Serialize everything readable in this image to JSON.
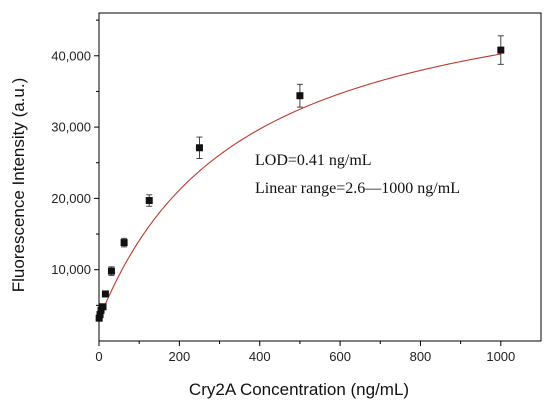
{
  "chart_data": {
    "type": "scatter",
    "xlabel": "Cry2A Concentration (ng/mL)",
    "ylabel": "Fluorescence Intensity (a.u.)",
    "xlim": [
      0,
      1100
    ],
    "ylim": [
      0,
      46000
    ],
    "x_ticks": [
      0,
      200,
      400,
      600,
      800,
      1000
    ],
    "x_tick_labels": [
      "0",
      "200",
      "400",
      "600",
      "800",
      "1000"
    ],
    "y_ticks": [
      10000,
      20000,
      30000,
      40000
    ],
    "y_tick_labels": [
      "10,000",
      "20,000",
      "30,000",
      "40,000"
    ],
    "grid": false,
    "legend": "none",
    "marker_color": "#111111",
    "fit_color": "#c0392b",
    "annotations": [
      "LOD=0.41 ng/mL",
      "Linear range=2.6—1000 ng/mL"
    ],
    "series": [
      {
        "x": [
          0.41,
          2.6,
          5,
          10,
          16,
          31,
          62.5,
          125,
          250,
          500,
          1000
        ],
        "y": [
          3200,
          3700,
          4300,
          4800,
          6600,
          9800,
          13800,
          19700,
          27100,
          34400,
          40800
        ],
        "err": [
          250,
          300,
          300,
          350,
          400,
          600,
          600,
          800,
          1500,
          1600,
          2000
        ]
      }
    ],
    "fit": {
      "model": "hill",
      "A1": 3000,
      "A2": 53500,
      "x0": 356,
      "p": 1
    }
  }
}
